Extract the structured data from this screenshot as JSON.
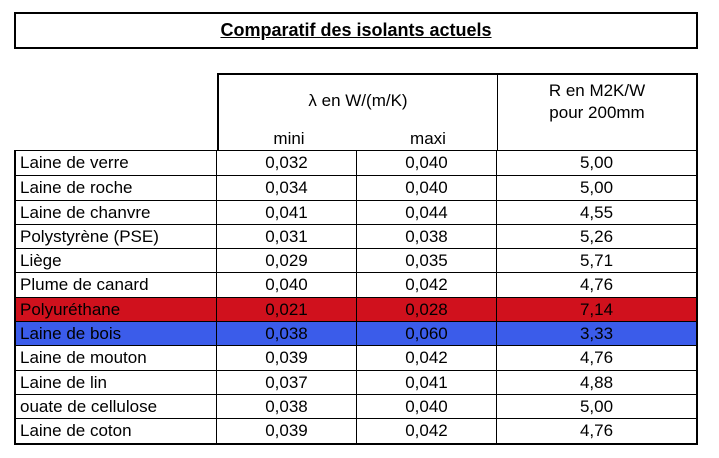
{
  "title": "Comparatif des isolants actuels",
  "table": {
    "header": {
      "lambda": "λ en W/(m/K)",
      "mini": "mini",
      "maxi": "maxi",
      "r": [
        "R en M2K/W",
        "pour 200mm"
      ]
    },
    "rows": [
      [
        "Laine de verre",
        "0,032",
        "0,040",
        "5,00"
      ],
      [
        "Laine de roche",
        "0,034",
        "0,040",
        "5,00"
      ],
      [
        "Laine de chanvre",
        "0,041",
        "0,044",
        "4,55"
      ],
      [
        "Polystyrène (PSE)",
        "0,031",
        "0,038",
        "5,26"
      ],
      [
        "Liège",
        "0,029",
        "0,035",
        "5,71"
      ],
      [
        "Plume de canard",
        "0,040",
        "0,042",
        "4,76"
      ],
      [
        "Polyuréthane",
        "0,021",
        "0,028",
        "7,14"
      ],
      [
        "Laine de bois",
        "0,038",
        "0,060",
        "3,33"
      ],
      [
        "Laine de mouton",
        "0,039",
        "0,042",
        "4,76"
      ],
      [
        "Laine de lin",
        "0,037",
        "0,041",
        "4,88"
      ],
      [
        "ouate de cellulose",
        "0,038",
        "0,040",
        "5,00"
      ],
      [
        "Laine de coton",
        "0,039",
        "0,042",
        "4,76"
      ]
    ]
  }
}
